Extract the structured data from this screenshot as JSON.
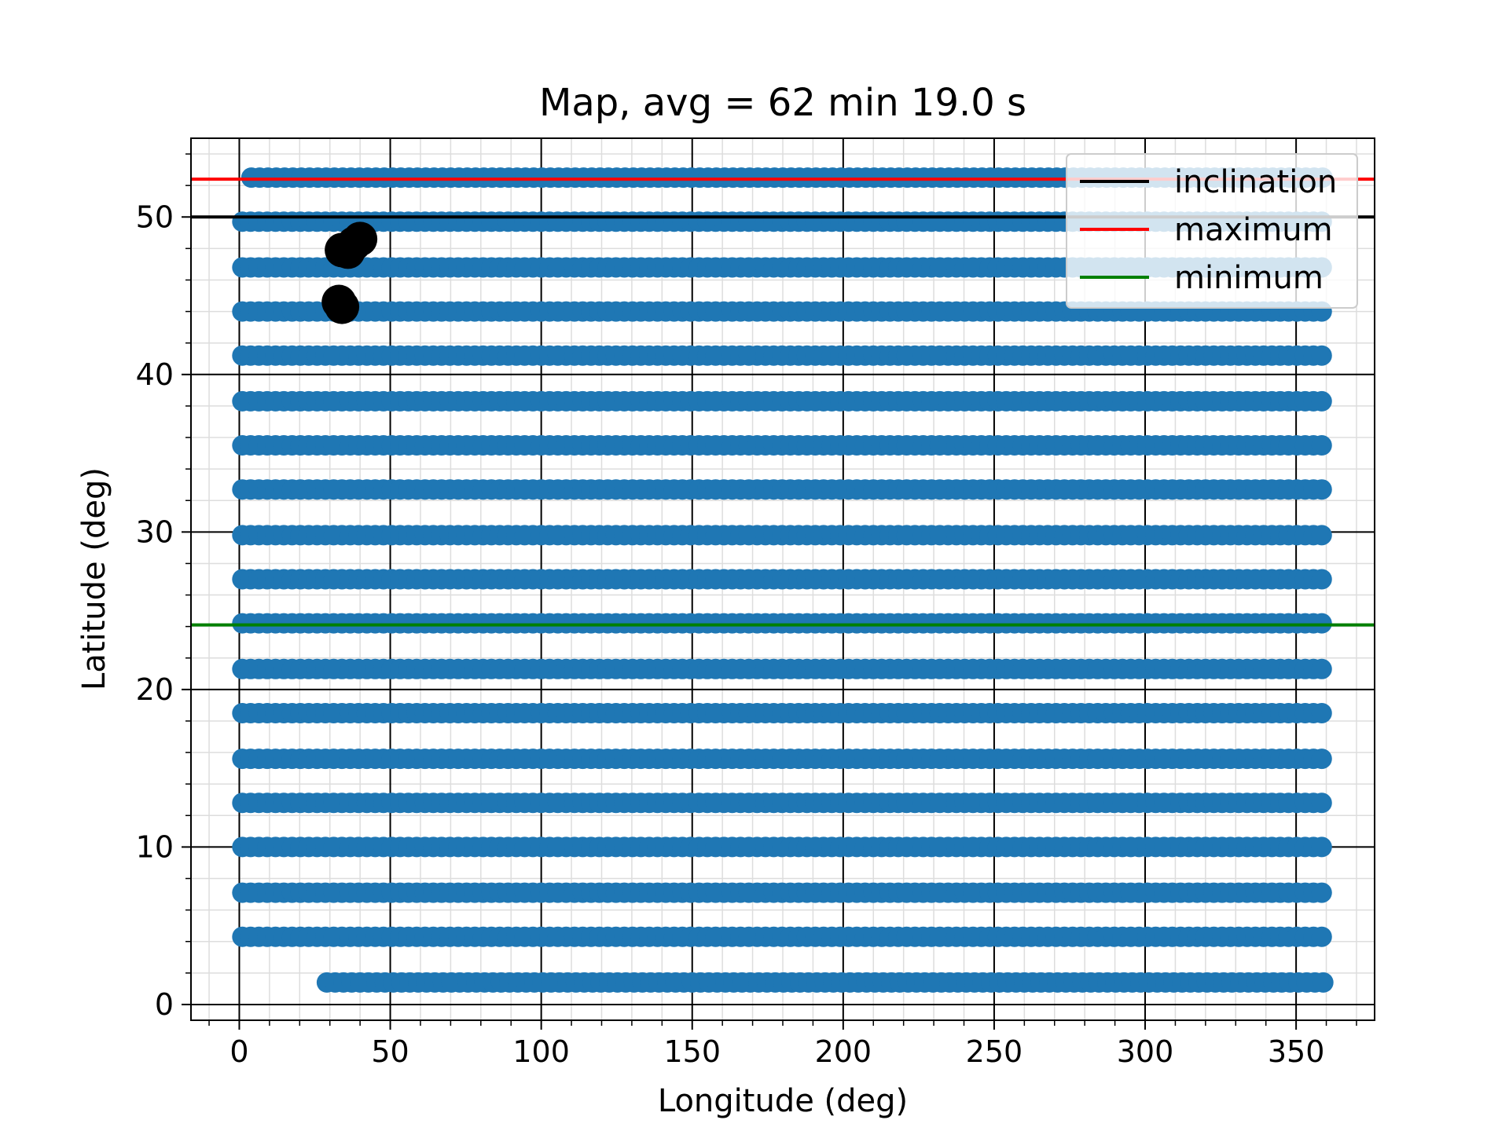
{
  "chart_data": {
    "type": "scatter",
    "title": "Map, avg = 62 min 19.0 s",
    "xlabel": "Longitude (deg)",
    "ylabel": "Latitude (deg)",
    "xlim": [
      -16,
      376
    ],
    "ylim": [
      -1,
      55
    ],
    "grid": true,
    "x_ticks": [
      0,
      50,
      100,
      150,
      200,
      250,
      300,
      350
    ],
    "y_ticks": [
      0,
      10,
      20,
      30,
      40,
      50
    ],
    "minor_grid_step": {
      "x": 10,
      "y": 2
    },
    "legend_position": "top-right",
    "sample_series": {
      "color": "#1f77b4",
      "latitudes": [
        1.4,
        4.3,
        7.1,
        10.0,
        12.8,
        15.6,
        18.5,
        21.3,
        24.2,
        27.0,
        29.8,
        32.7,
        35.5,
        38.3,
        41.2,
        44.0,
        46.8,
        49.7,
        52.5
      ],
      "longitude_range": [
        0,
        360
      ],
      "longitude_step": 2.75,
      "rows": [
        {
          "lat": 1.4,
          "lon_start": 29,
          "lon_end": 360
        },
        {
          "lat": 4.3,
          "lon_start": 1,
          "lon_end": 360
        },
        {
          "lat": 7.1,
          "lon_start": 1,
          "lon_end": 360
        },
        {
          "lat": 10.0,
          "lon_start": 1,
          "lon_end": 360
        },
        {
          "lat": 12.8,
          "lon_start": 1,
          "lon_end": 360
        },
        {
          "lat": 15.6,
          "lon_start": 1,
          "lon_end": 360
        },
        {
          "lat": 18.5,
          "lon_start": 1,
          "lon_end": 360
        },
        {
          "lat": 21.3,
          "lon_start": 1,
          "lon_end": 360
        },
        {
          "lat": 24.2,
          "lon_start": 1,
          "lon_end": 360
        },
        {
          "lat": 27.0,
          "lon_start": 1,
          "lon_end": 360
        },
        {
          "lat": 29.8,
          "lon_start": 1,
          "lon_end": 360
        },
        {
          "lat": 32.7,
          "lon_start": 1,
          "lon_end": 360
        },
        {
          "lat": 35.5,
          "lon_start": 1,
          "lon_end": 360
        },
        {
          "lat": 38.3,
          "lon_start": 1,
          "lon_end": 360
        },
        {
          "lat": 41.2,
          "lon_start": 1,
          "lon_end": 360
        },
        {
          "lat": 44.0,
          "lon_start": 1,
          "lon_end": 360
        },
        {
          "lat": 46.8,
          "lon_start": 1,
          "lon_end": 360
        },
        {
          "lat": 49.7,
          "lon_start": 1,
          "lon_end": 360
        },
        {
          "lat": 52.5,
          "lon_start": 4,
          "lon_end": 360
        }
      ]
    },
    "highlight_points": {
      "color": "#000000",
      "points": [
        {
          "x": 34,
          "y": 47.9
        },
        {
          "x": 36,
          "y": 47.8
        },
        {
          "x": 38,
          "y": 48.3
        },
        {
          "x": 40,
          "y": 48.6
        },
        {
          "x": 33,
          "y": 44.6
        },
        {
          "x": 34,
          "y": 44.3
        }
      ]
    },
    "lines": [
      {
        "name": "inclination",
        "y": 50,
        "color": "#000000"
      },
      {
        "name": "maximum",
        "y": 52.4,
        "color": "#ff0000"
      },
      {
        "name": "minimum",
        "y": 24.1,
        "color": "#008000"
      }
    ]
  }
}
